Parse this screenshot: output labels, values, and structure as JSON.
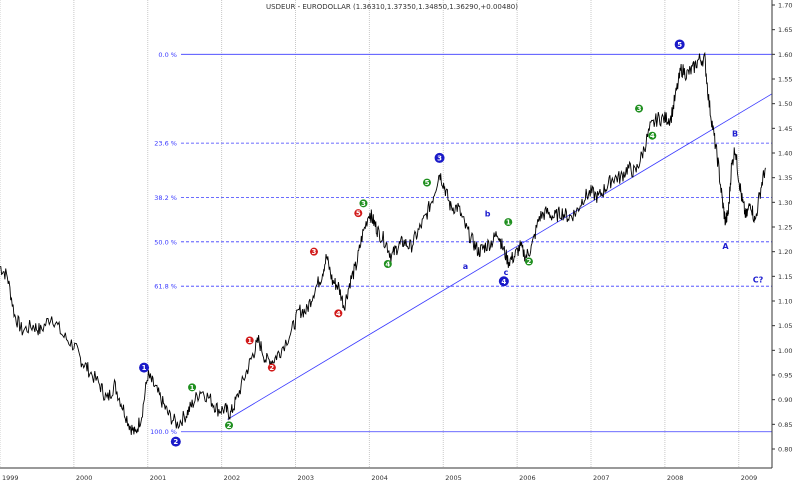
{
  "chart_data": {
    "type": "line",
    "title": "USDEUR - EURODOLLAR (1.36310,1.37350,1.34850,1.36290,+0.00480)",
    "xlabel": "",
    "ylabel": "",
    "x_ticks": [
      "1999",
      "2000",
      "2001",
      "2002",
      "2003",
      "2004",
      "2005",
      "2006",
      "2007",
      "2008",
      "2009"
    ],
    "y_ticks": [
      "1.70",
      "1.65",
      "1.60",
      "1.55",
      "1.50",
      "1.45",
      "1.40",
      "1.35",
      "1.30",
      "1.25",
      "1.20",
      "1.15",
      "1.10",
      "1.05",
      "1.00",
      "0.95",
      "0.90",
      "0.85",
      "0.80"
    ],
    "ylim": [
      0.78,
      1.72
    ],
    "xlim": [
      1999.0,
      2009.45
    ],
    "grid": "vertical",
    "series": [
      {
        "values": [
          [
            1999.0,
            1.17
          ],
          [
            1999.1,
            1.15
          ],
          [
            1999.2,
            1.07
          ],
          [
            1999.3,
            1.04
          ],
          [
            1999.45,
            1.05
          ],
          [
            1999.55,
            1.04
          ],
          [
            1999.7,
            1.07
          ],
          [
            1999.85,
            1.03
          ],
          [
            2000.0,
            1.01
          ],
          [
            2000.1,
            0.98
          ],
          [
            2000.2,
            0.96
          ],
          [
            2000.35,
            0.93
          ],
          [
            2000.45,
            0.9
          ],
          [
            2000.55,
            0.93
          ],
          [
            2000.65,
            0.89
          ],
          [
            2000.75,
            0.85
          ],
          [
            2000.83,
            0.83
          ],
          [
            2000.92,
            0.87
          ],
          [
            2001.0,
            0.95
          ],
          [
            2001.08,
            0.93
          ],
          [
            2001.18,
            0.9
          ],
          [
            2001.28,
            0.87
          ],
          [
            2001.4,
            0.85
          ],
          [
            2001.52,
            0.87
          ],
          [
            2001.6,
            0.89
          ],
          [
            2001.72,
            0.92
          ],
          [
            2001.85,
            0.9
          ],
          [
            2001.95,
            0.88
          ],
          [
            2002.05,
            0.88
          ],
          [
            2002.12,
            0.87
          ],
          [
            2002.2,
            0.9
          ],
          [
            2002.32,
            0.95
          ],
          [
            2002.42,
            0.99
          ],
          [
            2002.5,
            1.02
          ],
          [
            2002.6,
            0.98
          ],
          [
            2002.7,
            0.98
          ],
          [
            2002.8,
            1.0
          ],
          [
            2002.95,
            1.04
          ],
          [
            2003.05,
            1.08
          ],
          [
            2003.15,
            1.08
          ],
          [
            2003.25,
            1.12
          ],
          [
            2003.35,
            1.15
          ],
          [
            2003.42,
            1.19
          ],
          [
            2003.5,
            1.14
          ],
          [
            2003.58,
            1.13
          ],
          [
            2003.66,
            1.09
          ],
          [
            2003.74,
            1.14
          ],
          [
            2003.82,
            1.17
          ],
          [
            2003.9,
            1.23
          ],
          [
            2004.0,
            1.28
          ],
          [
            2004.06,
            1.26
          ],
          [
            2004.12,
            1.24
          ],
          [
            2004.22,
            1.22
          ],
          [
            2004.3,
            1.19
          ],
          [
            2004.38,
            1.21
          ],
          [
            2004.46,
            1.22
          ],
          [
            2004.56,
            1.21
          ],
          [
            2004.66,
            1.24
          ],
          [
            2004.76,
            1.27
          ],
          [
            2004.86,
            1.31
          ],
          [
            2004.95,
            1.36
          ],
          [
            2005.02,
            1.33
          ],
          [
            2005.1,
            1.29
          ],
          [
            2005.2,
            1.29
          ],
          [
            2005.3,
            1.25
          ],
          [
            2005.4,
            1.22
          ],
          [
            2005.48,
            1.2
          ],
          [
            2005.56,
            1.21
          ],
          [
            2005.66,
            1.22
          ],
          [
            2005.74,
            1.24
          ],
          [
            2005.8,
            1.21
          ],
          [
            2005.88,
            1.18
          ],
          [
            2005.96,
            1.19
          ],
          [
            2006.04,
            1.21
          ],
          [
            2006.12,
            1.19
          ],
          [
            2006.2,
            1.21
          ],
          [
            2006.3,
            1.27
          ],
          [
            2006.4,
            1.28
          ],
          [
            2006.5,
            1.27
          ],
          [
            2006.6,
            1.28
          ],
          [
            2006.7,
            1.27
          ],
          [
            2006.8,
            1.28
          ],
          [
            2006.9,
            1.31
          ],
          [
            2007.0,
            1.32
          ],
          [
            2007.1,
            1.31
          ],
          [
            2007.2,
            1.33
          ],
          [
            2007.3,
            1.35
          ],
          [
            2007.4,
            1.35
          ],
          [
            2007.5,
            1.37
          ],
          [
            2007.6,
            1.36
          ],
          [
            2007.7,
            1.4
          ],
          [
            2007.8,
            1.45
          ],
          [
            2007.9,
            1.47
          ],
          [
            2008.0,
            1.47
          ],
          [
            2008.08,
            1.47
          ],
          [
            2008.15,
            1.52
          ],
          [
            2008.22,
            1.57
          ],
          [
            2008.3,
            1.56
          ],
          [
            2008.38,
            1.57
          ],
          [
            2008.46,
            1.59
          ],
          [
            2008.54,
            1.59
          ],
          [
            2008.6,
            1.5
          ],
          [
            2008.66,
            1.44
          ],
          [
            2008.72,
            1.38
          ],
          [
            2008.78,
            1.3
          ],
          [
            2008.82,
            1.26
          ],
          [
            2008.86,
            1.28
          ],
          [
            2008.9,
            1.37
          ],
          [
            2008.95,
            1.41
          ],
          [
            2009.0,
            1.35
          ],
          [
            2009.05,
            1.3
          ],
          [
            2009.1,
            1.27
          ],
          [
            2009.16,
            1.3
          ],
          [
            2009.22,
            1.26
          ],
          [
            2009.3,
            1.33
          ],
          [
            2009.36,
            1.37
          ]
        ]
      }
    ],
    "fib_levels": [
      {
        "label": "0.0 %",
        "y": 1.6
      },
      {
        "label": "23.6 %",
        "y": 1.42
      },
      {
        "label": "38.2 %",
        "y": 1.31
      },
      {
        "label": "50.0 %",
        "y": 1.22
      },
      {
        "label": "61.8 %",
        "y": 1.13
      },
      {
        "label": "100.0 %",
        "y": 0.835
      }
    ],
    "trendline": [
      [
        2002.08,
        0.86
      ],
      [
        2009.45,
        1.52
      ]
    ],
    "wave_labels": [
      {
        "text": "1",
        "x": 2000.95,
        "y": 0.965,
        "style": "blue"
      },
      {
        "text": "2",
        "x": 2001.38,
        "y": 0.815,
        "style": "blue"
      },
      {
        "text": "3",
        "x": 2004.95,
        "y": 1.39,
        "style": "blue"
      },
      {
        "text": "4",
        "x": 2005.82,
        "y": 1.14,
        "style": "blue"
      },
      {
        "text": "5",
        "x": 2008.2,
        "y": 1.62,
        "style": "blue"
      },
      {
        "text": "1",
        "x": 2001.6,
        "y": 0.925,
        "style": "green"
      },
      {
        "text": "2",
        "x": 2002.1,
        "y": 0.848,
        "style": "green"
      },
      {
        "text": "3",
        "x": 2003.92,
        "y": 1.298,
        "style": "green"
      },
      {
        "text": "4",
        "x": 2004.25,
        "y": 1.175,
        "style": "green"
      },
      {
        "text": "5",
        "x": 2004.78,
        "y": 1.34,
        "style": "green"
      },
      {
        "text": "1",
        "x": 2005.88,
        "y": 1.26,
        "style": "green"
      },
      {
        "text": "2",
        "x": 2006.16,
        "y": 1.18,
        "style": "green"
      },
      {
        "text": "3",
        "x": 2007.65,
        "y": 1.49,
        "style": "green"
      },
      {
        "text": "4",
        "x": 2007.83,
        "y": 1.435,
        "style": "green"
      },
      {
        "text": "1",
        "x": 2002.38,
        "y": 1.02,
        "style": "red"
      },
      {
        "text": "2",
        "x": 2002.68,
        "y": 0.965,
        "style": "red"
      },
      {
        "text": "3",
        "x": 2003.25,
        "y": 1.2,
        "style": "red"
      },
      {
        "text": "4",
        "x": 2003.58,
        "y": 1.075,
        "style": "red"
      },
      {
        "text": "5",
        "x": 2003.85,
        "y": 1.278,
        "style": "red"
      }
    ],
    "letter_labels": [
      {
        "text": "a",
        "x": 2005.3,
        "y": 1.165
      },
      {
        "text": "b",
        "x": 2005.6,
        "y": 1.271
      },
      {
        "text": "c",
        "x": 2005.85,
        "y": 1.153
      },
      {
        "text": "A",
        "x": 2008.82,
        "y": 1.205
      },
      {
        "text": "B",
        "x": 2008.95,
        "y": 1.433
      },
      {
        "text": "C?",
        "x": 2009.26,
        "y": 1.138
      }
    ],
    "colors": {
      "price": "#000000",
      "fib": "#3a3aff",
      "trend": "#3a3aff",
      "wave_blue": "#1a1ac8",
      "wave_green": "#1f8f1f",
      "wave_red": "#d11a1a",
      "grid": "#c8c8c8"
    }
  }
}
